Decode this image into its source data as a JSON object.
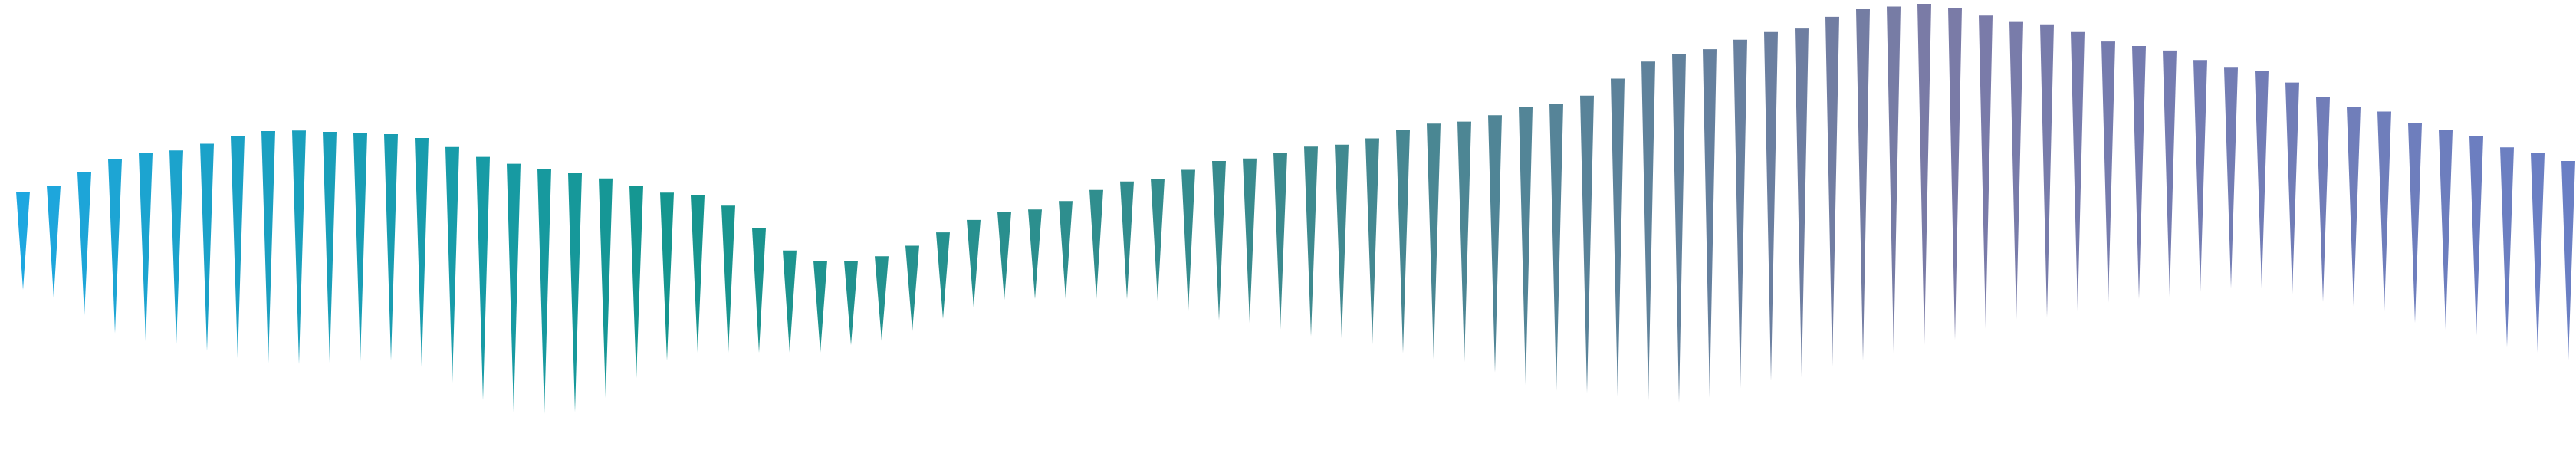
{
  "wave": {
    "shape": "spike-wedges",
    "count": 84,
    "gradient_colors": [
      "#1ea7e0",
      "#15968f",
      "#3c8a8e",
      "#7b7ba6",
      "#6a7fc4"
    ]
  }
}
